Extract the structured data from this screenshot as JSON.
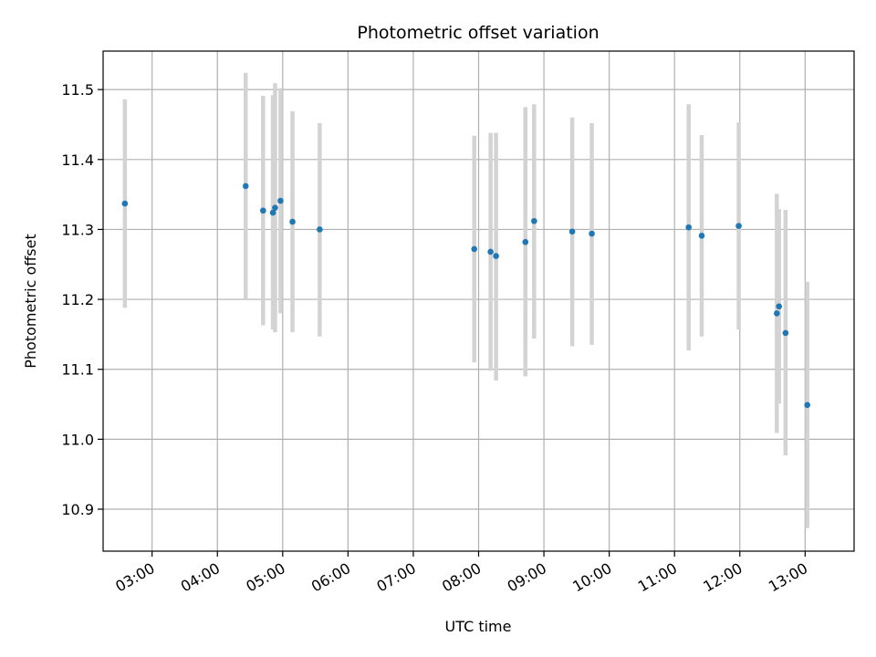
{
  "chart_data": {
    "type": "scatter",
    "title": "Photometric offset variation",
    "xlabel": "UTC time",
    "ylabel": "Photometric offset",
    "x_ticks": [
      "03:00",
      "04:00",
      "05:00",
      "06:00",
      "07:00",
      "08:00",
      "09:00",
      "10:00",
      "11:00",
      "12:00",
      "13:00"
    ],
    "y_ticks": [
      10.9,
      11.0,
      11.1,
      11.2,
      11.3,
      11.4,
      11.5
    ],
    "xlim": [
      "02:15",
      "13:45"
    ],
    "ylim": [
      10.84,
      11.555
    ],
    "grid": true,
    "colors": {
      "point": "#1f77b4",
      "errorbar": "#d3d3d3",
      "grid": "#b0b0b0"
    },
    "points": [
      {
        "x": "02:35",
        "y": 11.337,
        "yerr_low": 11.188,
        "yerr_high": 11.486
      },
      {
        "x": "04:26",
        "y": 11.362,
        "yerr_low": 11.2,
        "yerr_high": 11.524
      },
      {
        "x": "04:42",
        "y": 11.327,
        "yerr_low": 11.163,
        "yerr_high": 11.491
      },
      {
        "x": "04:51",
        "y": 11.324,
        "yerr_low": 11.157,
        "yerr_high": 11.492
      },
      {
        "x": "04:53",
        "y": 11.331,
        "yerr_low": 11.153,
        "yerr_high": 11.509
      },
      {
        "x": "04:58",
        "y": 11.341,
        "yerr_low": 11.18,
        "yerr_high": 11.502
      },
      {
        "x": "05:09",
        "y": 11.311,
        "yerr_low": 11.153,
        "yerr_high": 11.469
      },
      {
        "x": "05:34",
        "y": 11.3,
        "yerr_low": 11.147,
        "yerr_high": 11.452
      },
      {
        "x": "07:56",
        "y": 11.272,
        "yerr_low": 11.11,
        "yerr_high": 11.434
      },
      {
        "x": "08:11",
        "y": 11.268,
        "yerr_low": 11.098,
        "yerr_high": 11.438
      },
      {
        "x": "08:16",
        "y": 11.262,
        "yerr_low": 11.084,
        "yerr_high": 11.438
      },
      {
        "x": "08:43",
        "y": 11.282,
        "yerr_low": 11.09,
        "yerr_high": 11.475
      },
      {
        "x": "08:51",
        "y": 11.312,
        "yerr_low": 11.144,
        "yerr_high": 11.479
      },
      {
        "x": "09:26",
        "y": 11.297,
        "yerr_low": 11.133,
        "yerr_high": 11.46
      },
      {
        "x": "09:44",
        "y": 11.294,
        "yerr_low": 11.135,
        "yerr_high": 11.452
      },
      {
        "x": "11:13",
        "y": 11.303,
        "yerr_low": 11.127,
        "yerr_high": 11.479
      },
      {
        "x": "11:25",
        "y": 11.291,
        "yerr_low": 11.147,
        "yerr_high": 11.435
      },
      {
        "x": "11:59",
        "y": 11.305,
        "yerr_low": 11.157,
        "yerr_high": 11.453
      },
      {
        "x": "12:34",
        "y": 11.18,
        "yerr_low": 11.009,
        "yerr_high": 11.351
      },
      {
        "x": "12:36",
        "y": 11.19,
        "yerr_low": 11.051,
        "yerr_high": 11.329
      },
      {
        "x": "12:42",
        "y": 11.152,
        "yerr_low": 10.977,
        "yerr_high": 11.328
      },
      {
        "x": "13:02",
        "y": 11.049,
        "yerr_low": 10.873,
        "yerr_high": 11.225
      }
    ]
  }
}
